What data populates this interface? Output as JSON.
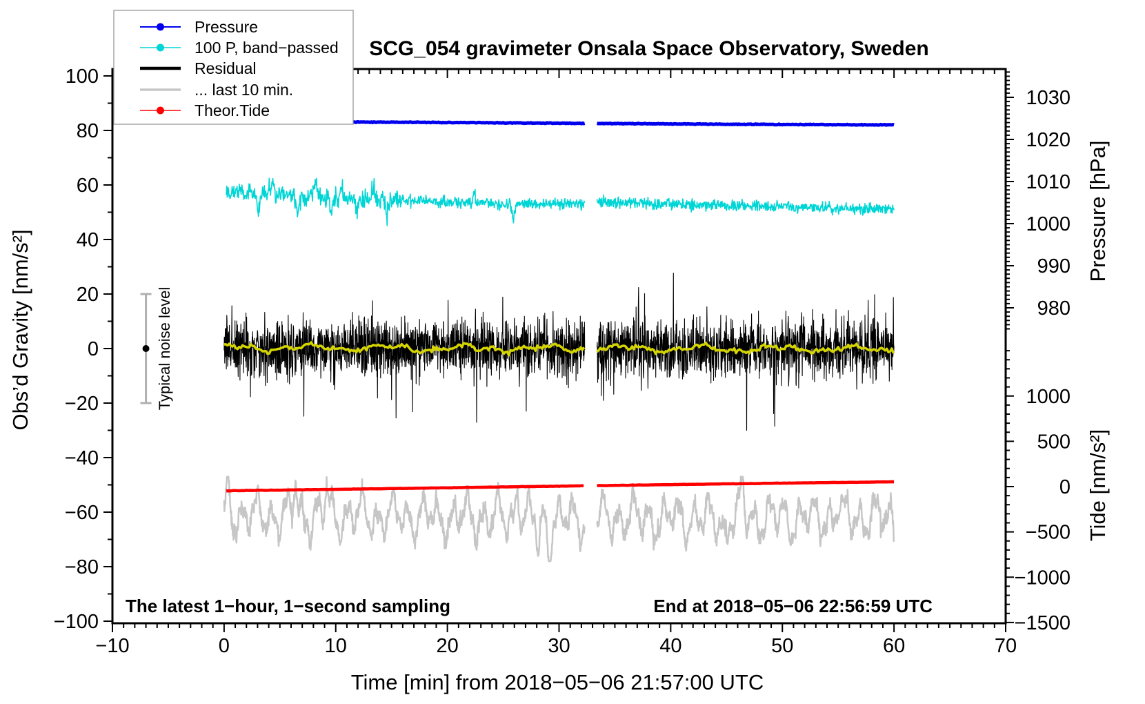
{
  "chart_data": {
    "type": "line",
    "title": "SCG_054 gravimeter Onsala Space Observatory, Sweden",
    "annotations": {
      "sampling": "The latest 1−hour, 1−second sampling",
      "end": "End at 2018−05−06 22:56:59 UTC",
      "noise_label": "Typical noise level"
    },
    "axes": {
      "x": {
        "label": "Time [min] from 2018−05−06 21:57:00 UTC",
        "min": -10,
        "max": 70,
        "minor_step": 1,
        "major_ticks": [
          -10,
          0,
          10,
          20,
          30,
          40,
          50,
          60,
          70
        ]
      },
      "y_left": {
        "label": "Obs’d Gravity [nm/s²]",
        "min": -100,
        "max": 100,
        "minor_step": 10,
        "major_ticks": [
          -100,
          -80,
          -60,
          -40,
          -20,
          0,
          20,
          40,
          60,
          80,
          100
        ]
      },
      "pressure": {
        "label": "Pressure [hPa]",
        "minor_step": 1,
        "minor_min": 975,
        "minor_max": 1036,
        "major_ticks": [
          980,
          990,
          1000,
          1010,
          1020,
          1030
        ]
      },
      "tide": {
        "label": "Tide [nm/s²]",
        "minor_step": 100,
        "minor_min": -1500,
        "minor_max": 1500,
        "major_ticks": [
          -1500,
          -1000,
          -500,
          0,
          500,
          1000
        ]
      }
    },
    "legend": {
      "items": [
        {
          "label": "Pressure",
          "color": "#0000ee",
          "dot": true,
          "line_width": 2
        },
        {
          "label": "100 P, band−passed",
          "color": "#00d5d5",
          "dot": true,
          "line_width": 1.6
        },
        {
          "label": "Residual",
          "color": "#000000",
          "dot": false,
          "line_width": 4.5
        },
        {
          "label": "... last 10 min.",
          "color": "#c6c6c6",
          "dot": false,
          "line_width": 3.5
        },
        {
          "label": "Theor.Tide",
          "color": "#ff0000",
          "dot": true,
          "line_width": 1.6
        }
      ]
    },
    "gap_minutes": [
      32.3,
      33.4
    ],
    "noise_bar": {
      "t": -7,
      "center": 0,
      "half_range": 20,
      "color": "#b0b0b0",
      "dot_color": "#000000"
    },
    "series": [
      {
        "id": "pressure",
        "name": "Pressure",
        "axis": "pressure",
        "color": "#0000ee",
        "width": 5,
        "step": 0.1,
        "seed": 11,
        "noise": 0.04,
        "t_start": 0,
        "t_end": 60,
        "anchors": [
          [
            0,
            1024.25
          ],
          [
            15,
            1024.1
          ],
          [
            30,
            1023.85
          ],
          [
            45,
            1023.6
          ],
          [
            60,
            1023.45
          ]
        ]
      },
      {
        "id": "band_passed_pressure",
        "name": "100 P, band-passed",
        "axis": "gravity",
        "color": "#00d5d5",
        "width": 1.6,
        "step": 0.04,
        "seed": 22,
        "noise": 1.0,
        "noise_early": [
          16,
          1.7
        ],
        "spikes": [
          [
            3.1,
            -7
          ],
          [
            4.3,
            5
          ],
          [
            6.6,
            -8
          ],
          [
            8.2,
            4.5
          ],
          [
            9.6,
            -6.5
          ],
          [
            10.5,
            5.5
          ],
          [
            11.9,
            -5.5
          ],
          [
            13.4,
            4
          ],
          [
            14.6,
            -4.5
          ],
          [
            22.4,
            4
          ],
          [
            25.9,
            -5
          ]
        ],
        "spike_w": 0.3,
        "t_start": 0.2,
        "t_end": 60,
        "anchors": [
          [
            0.2,
            58.5
          ],
          [
            2,
            57.2
          ],
          [
            4,
            56.8
          ],
          [
            7,
            55.8
          ],
          [
            10,
            55.2
          ],
          [
            14,
            54.6
          ],
          [
            18,
            54
          ],
          [
            22,
            53.4
          ],
          [
            26,
            53
          ],
          [
            29,
            53.1
          ],
          [
            32.3,
            53.4
          ],
          [
            33.4,
            53.9
          ],
          [
            36,
            53.5
          ],
          [
            40,
            53
          ],
          [
            44,
            52.6
          ],
          [
            48,
            52.2
          ],
          [
            52,
            51.8
          ],
          [
            56,
            51.4
          ],
          [
            60,
            51.2
          ]
        ]
      },
      {
        "id": "residual",
        "name": "Residual",
        "axis": "gravity",
        "color": "#000000",
        "width": 1.1,
        "step": 0.02,
        "seed": 33,
        "noise": 5.2,
        "tail": [
          0.012,
          10,
          14
        ],
        "t_start": 0,
        "t_end": 60,
        "anchors": [
          [
            0,
            0
          ],
          [
            60,
            0
          ]
        ]
      },
      {
        "id": "residual_smoothed",
        "name": "smoothed residual (yellow)",
        "axis": "gravity",
        "color": "#d4d400",
        "width": 3.5,
        "step": 0.15,
        "seed": 44,
        "noise": 0.45,
        "osc": [
          [
            0.9,
            7,
            1
          ],
          [
            0.6,
            2.7,
            2
          ]
        ],
        "t_start": 0,
        "t_end": 60,
        "anchors": [
          [
            0,
            0.3
          ],
          [
            60,
            -0.2
          ]
        ]
      },
      {
        "id": "last_10_min",
        "name": "... last 10 min.",
        "axis": "gravity",
        "color": "#c6c6c6",
        "width": 2.5,
        "step": 0.03,
        "seed": 55,
        "noise": 1.5,
        "osc": [
          [
            5.5,
            1.35,
            0.5
          ],
          [
            3.0,
            3.1,
            2.1
          ],
          [
            2.2,
            0.55,
            4.2
          ]
        ],
        "spikes": [
          [
            0.4,
            10
          ],
          [
            6.4,
            13
          ],
          [
            9.2,
            11
          ],
          [
            26.3,
            14
          ],
          [
            46.4,
            13
          ],
          [
            28.2,
            -12
          ],
          [
            29.1,
            -10
          ],
          [
            44.9,
            -9
          ],
          [
            55,
            6
          ]
        ],
        "spike_w": 0.35,
        "clamp": [
          -78,
          -47
        ],
        "t_start": 0,
        "t_end": 60,
        "anchors": [
          [
            0,
            -61
          ],
          [
            30,
            -62.5
          ],
          [
            60,
            -62
          ]
        ]
      },
      {
        "id": "theor_tide",
        "name": "Theor.Tide",
        "axis": "tide",
        "color": "#ff0000",
        "width": 4.5,
        "step": 0.2,
        "seed": 66,
        "noise": 0.8,
        "t_start": 0.2,
        "t_end": 60,
        "anchors": [
          [
            0.2,
            -46
          ],
          [
            10,
            -30
          ],
          [
            20,
            -13
          ],
          [
            30,
            5
          ],
          [
            40,
            22
          ],
          [
            50,
            38
          ],
          [
            60,
            53
          ]
        ]
      }
    ]
  }
}
